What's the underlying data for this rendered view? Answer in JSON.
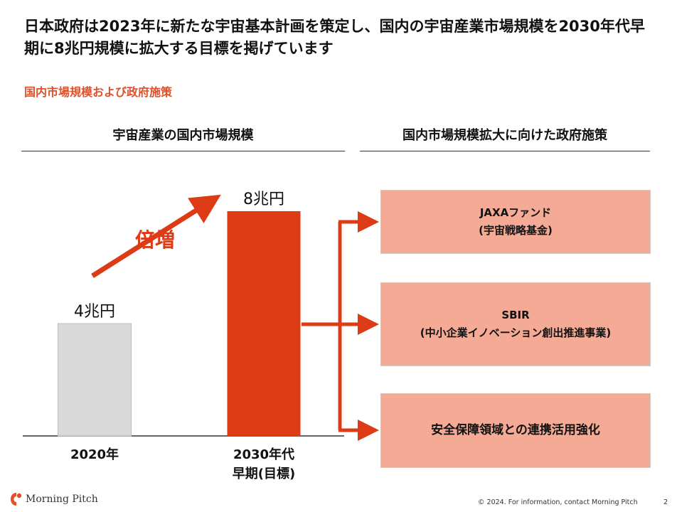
{
  "title": "日本政府は2023年に新たな宇宙基本計画を策定し、国内の宇宙産業市場規模を2030年代早期に8兆円規模に拡大する目標を掲げています",
  "subtitle": "国内市場規模および政府施策",
  "left_header": "宇宙産業の国内市場規模",
  "right_header": "国内市場規模拡大に向けた政府施策",
  "growth_label": "倍増",
  "chart_data": {
    "type": "bar",
    "title": "宇宙産業の国内市場規模",
    "categories": [
      {
        "line1": "2020年",
        "line2": ""
      },
      {
        "line1": "2030年代",
        "line2": "早期(目標)"
      }
    ],
    "values": [
      4,
      8
    ],
    "unit": "兆円",
    "data_labels": [
      "4兆円",
      "8兆円"
    ],
    "colors": [
      "#d9d9d9",
      "#dd3b16"
    ],
    "ylim": [
      0,
      8
    ],
    "annotation": "倍増"
  },
  "policies": [
    {
      "line1": "JAXAファンド",
      "line2": "(宇宙戦略基金)"
    },
    {
      "line1": "SBIR",
      "line2": "(中小企業イノベーション創出推進事業)"
    },
    {
      "line1": "安全保障領域との連携活用強化",
      "line2": ""
    }
  ],
  "colors": {
    "accent": "#dd3b16",
    "subtitle": "#e0502a",
    "policy_box": "#f4aa95"
  },
  "footer": "© 2024. For information, contact Morning Pitch",
  "page_number": "2",
  "logo_text": "Morning Pitch"
}
